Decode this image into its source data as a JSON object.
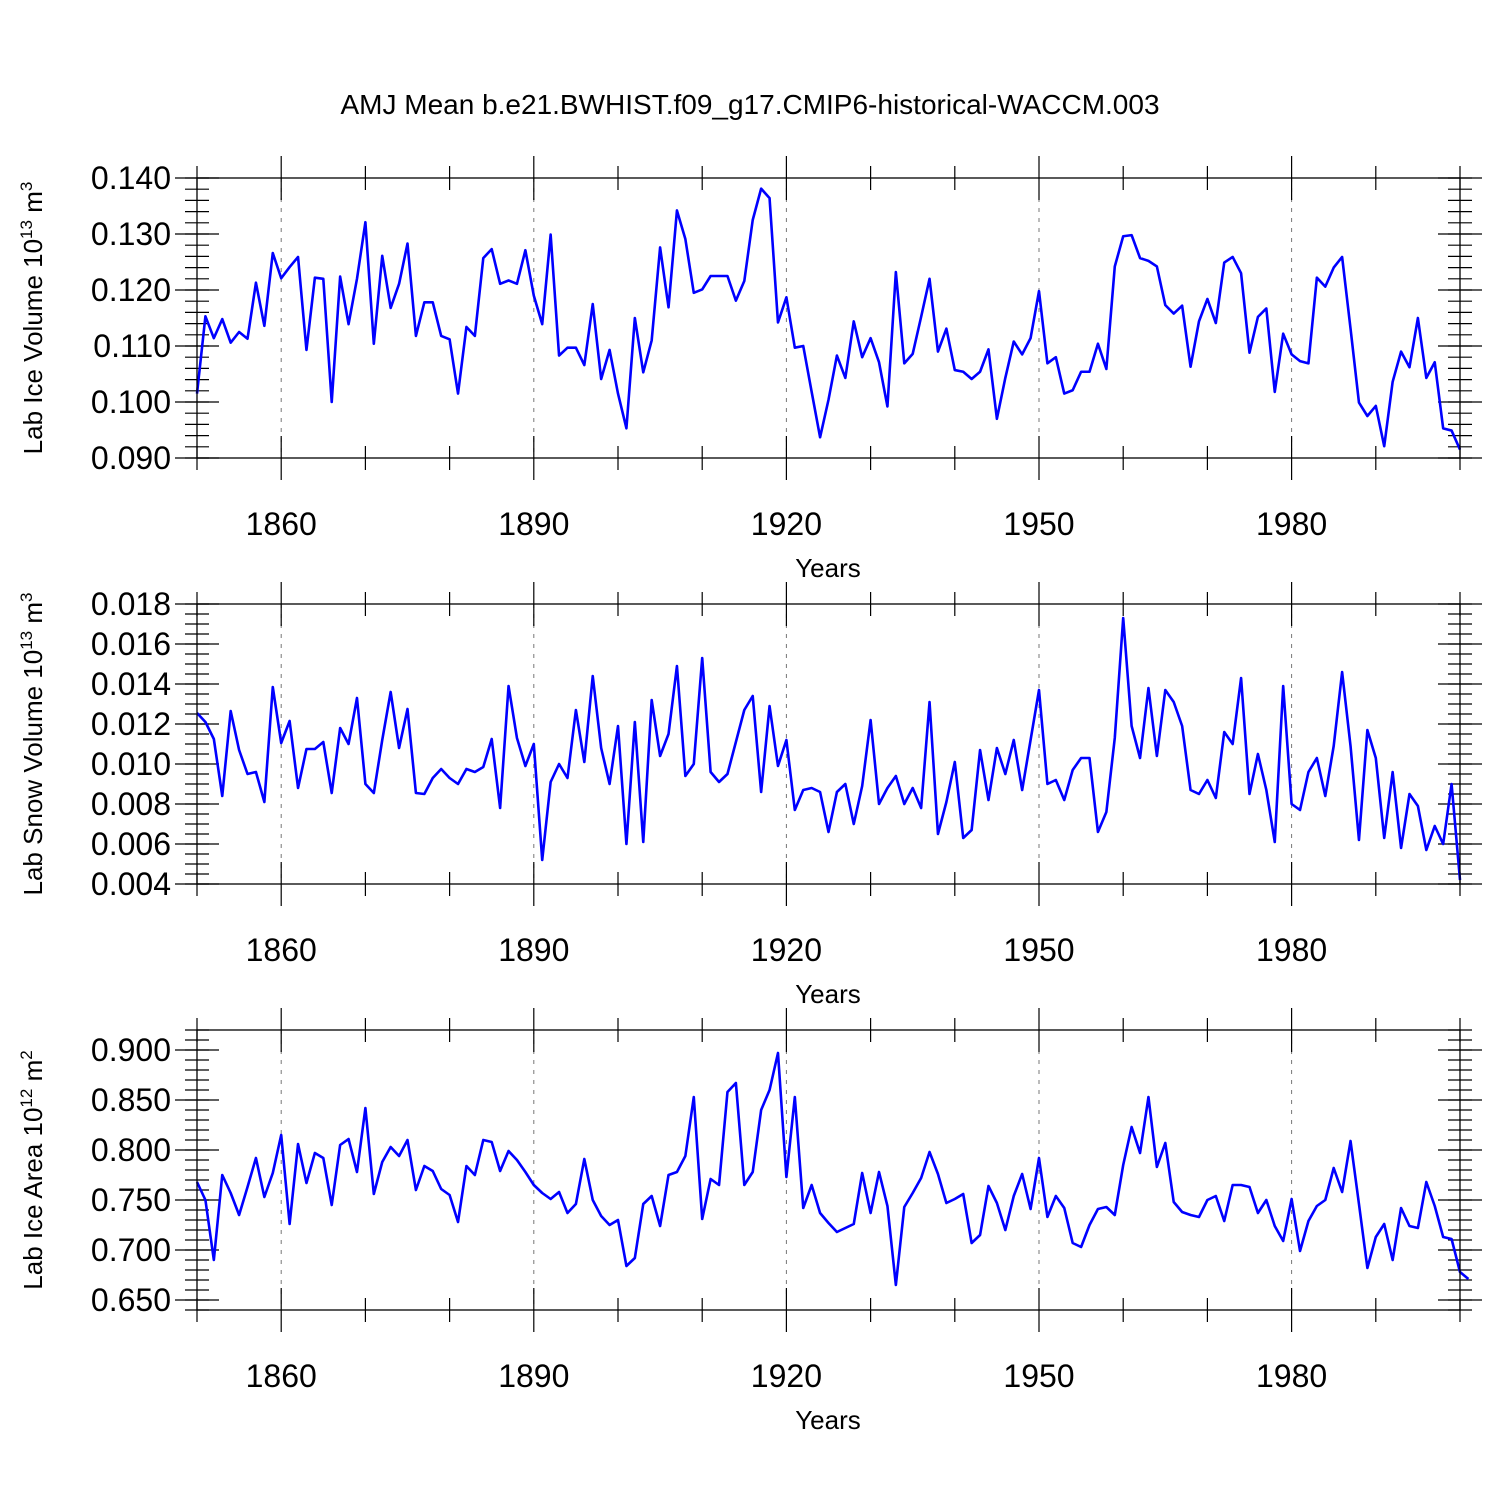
{
  "title": "AMJ Mean b.e21.BWHIST.f09_g17.CMIP6-historical-WACCM.003",
  "line_color": "#0000ff",
  "chart_data": [
    {
      "type": "line",
      "name": "lab-ice-volume",
      "ylabel_main": "Lab Ice Volume 10",
      "ylabel_exp": "13",
      "ylabel_unit": " m",
      "ylabel_unit_exp": "3",
      "xlabel": "Years",
      "xlim": [
        1850,
        2000
      ],
      "ylim": [
        0.09,
        0.14
      ],
      "yticks": [
        0.09,
        0.1,
        0.11,
        0.12,
        0.13,
        0.14
      ],
      "ytick_labels": [
        "0.090",
        "0.100",
        "0.110",
        "0.120",
        "0.130",
        "0.140"
      ],
      "ytick_minor_step": 0.002,
      "xticks": [
        1860,
        1890,
        1920,
        1950,
        1980
      ],
      "xtick_labels": [
        "1860",
        "1890",
        "1920",
        "1950",
        "1980"
      ],
      "xtick_minor_step": 10,
      "grid": "vertical dashed at major x ticks",
      "start_year": 1850,
      "values": [
        0.1015,
        0.1153,
        0.1114,
        0.1148,
        0.1106,
        0.1125,
        0.1113,
        0.1213,
        0.1136,
        0.1266,
        0.1221,
        0.1241,
        0.1259,
        0.1093,
        0.1222,
        0.122,
        0.1,
        0.1224,
        0.1139,
        0.122,
        0.1321,
        0.1104,
        0.1261,
        0.1168,
        0.1211,
        0.1283,
        0.1118,
        0.1178,
        0.1178,
        0.1118,
        0.1112,
        0.1015,
        0.1134,
        0.1118,
        0.1257,
        0.1273,
        0.1211,
        0.1217,
        0.1211,
        0.1271,
        0.119,
        0.1139,
        0.1299,
        0.1083,
        0.1097,
        0.1097,
        0.1066,
        0.1175,
        0.1041,
        0.1093,
        0.1015,
        0.0953,
        0.115,
        0.1053,
        0.111,
        0.1276,
        0.1169,
        0.1342,
        0.1291,
        0.1195,
        0.1201,
        0.1225,
        0.1225,
        0.1225,
        0.1181,
        0.1216,
        0.1325,
        0.1381,
        0.1364,
        0.1142,
        0.1187,
        0.1097,
        0.11,
        0.1018,
        0.0937,
        0.1004,
        0.1083,
        0.1043,
        0.1144,
        0.108,
        0.1114,
        0.1071,
        0.0992,
        0.1232,
        0.1069,
        0.1086,
        0.1152,
        0.122,
        0.109,
        0.1131,
        0.1057,
        0.1054,
        0.1041,
        0.1054,
        0.1094,
        0.097,
        0.1043,
        0.1108,
        0.1085,
        0.1114,
        0.1198,
        0.1069,
        0.108,
        0.1015,
        0.1021,
        0.1054,
        0.1054,
        0.1104,
        0.1059,
        0.1242,
        0.1296,
        0.1298,
        0.1257,
        0.1252,
        0.1242,
        0.1173,
        0.1158,
        0.1172,
        0.1063,
        0.1144,
        0.1184,
        0.1141,
        0.1249,
        0.1259,
        0.123,
        0.1088,
        0.1152,
        0.1167,
        0.1018,
        0.1122,
        0.1085,
        0.1073,
        0.1069,
        0.1222,
        0.1206,
        0.124,
        0.1259,
        0.1131,
        0.0999,
        0.0975,
        0.0993,
        0.0921,
        0.1036,
        0.109,
        0.1062,
        0.115,
        0.1043,
        0.1071,
        0.0953,
        0.0949,
        0.0915
      ]
    },
    {
      "type": "line",
      "name": "lab-snow-volume",
      "ylabel_main": "Lab Snow Volume 10",
      "ylabel_exp": "13",
      "ylabel_unit": " m",
      "ylabel_unit_exp": "3",
      "xlabel": "Years",
      "xlim": [
        1850,
        2000
      ],
      "ylim": [
        0.004,
        0.018
      ],
      "yticks": [
        0.004,
        0.006,
        0.008,
        0.01,
        0.012,
        0.014,
        0.016,
        0.018
      ],
      "ytick_labels": [
        "0.004",
        "0.006",
        "0.008",
        "0.010",
        "0.012",
        "0.014",
        "0.016",
        "0.018"
      ],
      "ytick_minor_step": 0.0005,
      "xticks": [
        1860,
        1890,
        1920,
        1950,
        1980
      ],
      "xtick_labels": [
        "1860",
        "1890",
        "1920",
        "1950",
        "1980"
      ],
      "xtick_minor_step": 10,
      "grid": "vertical dashed at major x ticks",
      "start_year": 1850,
      "values": [
        0.01255,
        0.0121,
        0.01125,
        0.0084,
        0.01265,
        0.0107,
        0.0095,
        0.0096,
        0.0081,
        0.01385,
        0.01105,
        0.01215,
        0.0088,
        0.01075,
        0.01075,
        0.0111,
        0.00855,
        0.0118,
        0.011,
        0.0133,
        0.009,
        0.00855,
        0.0112,
        0.0136,
        0.0108,
        0.01275,
        0.00855,
        0.0085,
        0.0093,
        0.00975,
        0.0093,
        0.009,
        0.00975,
        0.0096,
        0.00985,
        0.01125,
        0.0078,
        0.0139,
        0.0113,
        0.0099,
        0.011,
        0.0052,
        0.0091,
        0.01,
        0.0093,
        0.0127,
        0.0101,
        0.0144,
        0.0108,
        0.009,
        0.0119,
        0.006,
        0.0121,
        0.0061,
        0.0132,
        0.0104,
        0.0115,
        0.0149,
        0.0094,
        0.01,
        0.0153,
        0.0096,
        0.0091,
        0.0095,
        0.0111,
        0.0127,
        0.0134,
        0.0086,
        0.0129,
        0.0099,
        0.0112,
        0.0077,
        0.0087,
        0.0088,
        0.0086,
        0.0066,
        0.0086,
        0.009,
        0.007,
        0.0089,
        0.0122,
        0.008,
        0.0088,
        0.0094,
        0.008,
        0.0088,
        0.0078,
        0.0131,
        0.0065,
        0.0081,
        0.0101,
        0.0063,
        0.0067,
        0.0107,
        0.0082,
        0.0108,
        0.0095,
        0.0112,
        0.0087,
        0.0112,
        0.0137,
        0.009,
        0.0092,
        0.0082,
        0.0097,
        0.0103,
        0.0103,
        0.0066,
        0.0076,
        0.0113,
        0.0173,
        0.0119,
        0.0103,
        0.0138,
        0.0104,
        0.0137,
        0.0131,
        0.0119,
        0.0087,
        0.0085,
        0.0092,
        0.0083,
        0.0116,
        0.011,
        0.0143,
        0.0085,
        0.0105,
        0.0087,
        0.0061,
        0.0139,
        0.008,
        0.0077,
        0.0096,
        0.0103,
        0.0084,
        0.0109,
        0.0146,
        0.0109,
        0.0062,
        0.0117,
        0.0103,
        0.0063,
        0.0096,
        0.0058,
        0.0085,
        0.0079,
        0.0057,
        0.0069,
        0.006,
        0.009,
        0.0042
      ]
    },
    {
      "type": "line",
      "name": "lab-ice-area",
      "ylabel_main": "Lab Ice Area 10",
      "ylabel_exp": "12",
      "ylabel_unit": " m",
      "ylabel_unit_exp": "2",
      "xlabel": "Years",
      "xlim": [
        1850,
        2000
      ],
      "ylim": [
        0.64,
        0.92
      ],
      "yticks": [
        0.65,
        0.7,
        0.75,
        0.8,
        0.85,
        0.9
      ],
      "ytick_labels": [
        "0.650",
        "0.700",
        "0.750",
        "0.800",
        "0.850",
        "0.900"
      ],
      "ytick_minor_step": 0.01,
      "xticks": [
        1860,
        1890,
        1920,
        1950,
        1980
      ],
      "xtick_labels": [
        "1860",
        "1890",
        "1920",
        "1950",
        "1980"
      ],
      "xtick_minor_step": 10,
      "grid": "vertical dashed at major x ticks",
      "start_year": 1850,
      "values": [
        0.768,
        0.75,
        0.69,
        0.775,
        0.757,
        0.735,
        0.763,
        0.792,
        0.753,
        0.777,
        0.815,
        0.726,
        0.806,
        0.767,
        0.797,
        0.792,
        0.745,
        0.805,
        0.811,
        0.778,
        0.842,
        0.756,
        0.788,
        0.803,
        0.794,
        0.81,
        0.76,
        0.784,
        0.779,
        0.761,
        0.755,
        0.728,
        0.784,
        0.775,
        0.81,
        0.808,
        0.779,
        0.799,
        0.79,
        0.778,
        0.765,
        0.757,
        0.751,
        0.758,
        0.737,
        0.746,
        0.791,
        0.75,
        0.734,
        0.725,
        0.73,
        0.684,
        0.692,
        0.746,
        0.754,
        0.724,
        0.775,
        0.778,
        0.794,
        0.853,
        0.731,
        0.771,
        0.765,
        0.858,
        0.867,
        0.765,
        0.778,
        0.84,
        0.86,
        0.897,
        0.773,
        0.853,
        0.742,
        0.765,
        0.737,
        0.727,
        0.718,
        0.722,
        0.726,
        0.777,
        0.737,
        0.778,
        0.744,
        0.665,
        0.743,
        0.757,
        0.772,
        0.798,
        0.776,
        0.747,
        0.751,
        0.756,
        0.707,
        0.715,
        0.764,
        0.747,
        0.72,
        0.754,
        0.776,
        0.741,
        0.792,
        0.733,
        0.754,
        0.742,
        0.707,
        0.703,
        0.725,
        0.741,
        0.743,
        0.735,
        0.785,
        0.823,
        0.797,
        0.853,
        0.783,
        0.807,
        0.748,
        0.738,
        0.735,
        0.733,
        0.75,
        0.754,
        0.729,
        0.765,
        0.765,
        0.763,
        0.737,
        0.75,
        0.724,
        0.709,
        0.751,
        0.699,
        0.729,
        0.744,
        0.75,
        0.782,
        0.758,
        0.809,
        0.746,
        0.682,
        0.713,
        0.726,
        0.69,
        0.742,
        0.724,
        0.722,
        0.768,
        0.744,
        0.713,
        0.711,
        0.678,
        0.671
      ]
    }
  ]
}
